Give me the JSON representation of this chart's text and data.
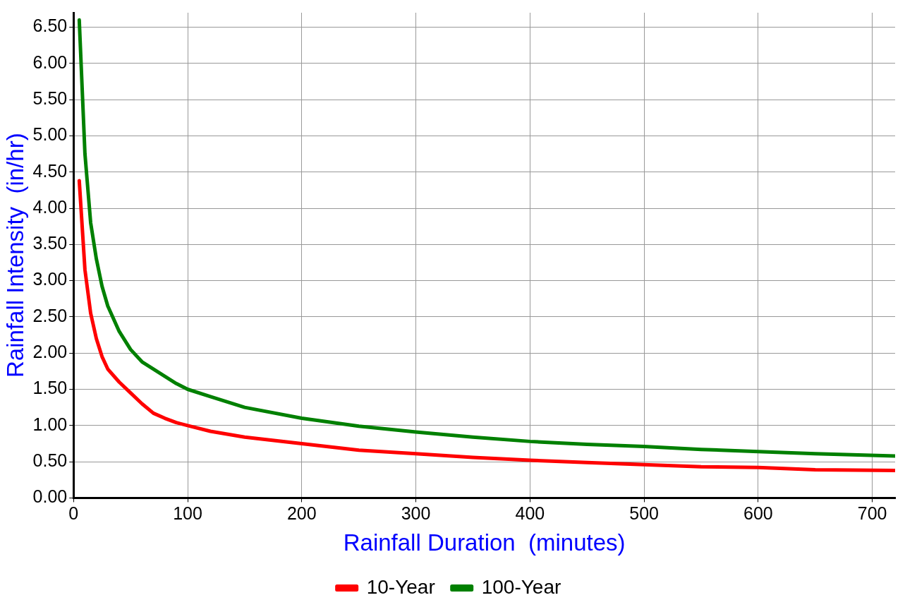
{
  "chart_data": {
    "type": "line",
    "xlabel": "Rainfall Duration  (minutes)",
    "ylabel": "Rainfall Intensity  (in/hr)",
    "xlim": [
      0,
      720
    ],
    "xticks": [
      0,
      100,
      200,
      300,
      400,
      500,
      600,
      700
    ],
    "ylim": [
      0,
      6.7
    ],
    "yticks": [
      {
        "value": 0,
        "label": "0.00"
      },
      {
        "value": 0.5,
        "label": "0.50"
      },
      {
        "value": 1,
        "label": "1.00"
      },
      {
        "value": 1.5,
        "label": "1.50"
      },
      {
        "value": 2,
        "label": "2.00"
      },
      {
        "value": 2.5,
        "label": "2.50"
      },
      {
        "value": 3,
        "label": "3.00"
      },
      {
        "value": 3.5,
        "label": "3.50"
      },
      {
        "value": 4,
        "label": "4.00"
      },
      {
        "value": 4.5,
        "label": "4.50"
      },
      {
        "value": 5,
        "label": "5.00"
      },
      {
        "value": 5.5,
        "label": "5.50"
      },
      {
        "value": 6,
        "label": "6.00"
      },
      {
        "value": 6.5,
        "label": "6.50"
      }
    ],
    "x": [
      5,
      10,
      15,
      20,
      25,
      30,
      40,
      50,
      60,
      70,
      80,
      90,
      100,
      120,
      150,
      200,
      250,
      300,
      350,
      400,
      450,
      500,
      550,
      600,
      650,
      720
    ],
    "series": [
      {
        "name": "10-Year",
        "color": "#ff0000",
        "values": [
          4.38,
          3.15,
          2.55,
          2.2,
          1.95,
          1.78,
          1.6,
          1.45,
          1.3,
          1.17,
          1.1,
          1.04,
          1.0,
          0.92,
          0.84,
          0.75,
          0.66,
          0.61,
          0.56,
          0.52,
          0.49,
          0.46,
          0.43,
          0.42,
          0.39,
          0.38
        ]
      },
      {
        "name": "100-Year",
        "color": "#008000",
        "values": [
          6.6,
          4.75,
          3.8,
          3.3,
          2.92,
          2.65,
          2.3,
          2.05,
          1.88,
          1.78,
          1.68,
          1.58,
          1.5,
          1.4,
          1.25,
          1.1,
          0.99,
          0.91,
          0.84,
          0.78,
          0.74,
          0.71,
          0.67,
          0.64,
          0.61,
          0.58
        ]
      }
    ],
    "grid": true,
    "legend": "bottom",
    "marker": "none",
    "line_style": "solid"
  }
}
